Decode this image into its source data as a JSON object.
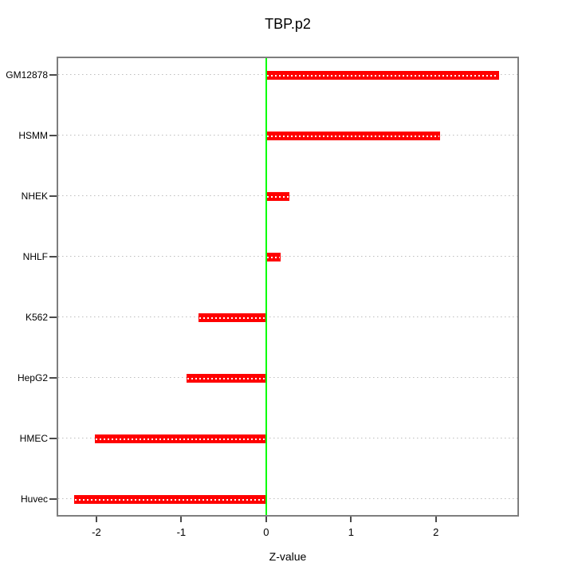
{
  "chart_data": {
    "type": "bar",
    "orientation": "horizontal",
    "title": "TBP.p2",
    "xlabel": "Z-value",
    "categories": [
      "GM12878",
      "HSMM",
      "NHEK",
      "NHLF",
      "K562",
      "HepG2",
      "HMEC",
      "Huvec"
    ],
    "values": [
      2.74,
      2.05,
      0.27,
      0.17,
      -0.8,
      -0.94,
      -2.02,
      -2.26
    ],
    "xlim": [
      -2.45,
      2.96
    ],
    "x_ticks": [
      -2,
      -1,
      0,
      1,
      2
    ],
    "x_tick_labels": [
      "-2",
      "-1",
      "0",
      "1",
      "2"
    ],
    "zero_line_at": 0,
    "grid": "dotted-horizontal",
    "legend": "none",
    "colors": {
      "bar": "#ff0000",
      "bar_dash": "#ffffff",
      "zero_line": "#00ff00",
      "grid": "#bebebe",
      "frame": "#7e7e7e",
      "tick": "#4a4a4a",
      "text": "#000000",
      "background": "#ffffff"
    }
  }
}
